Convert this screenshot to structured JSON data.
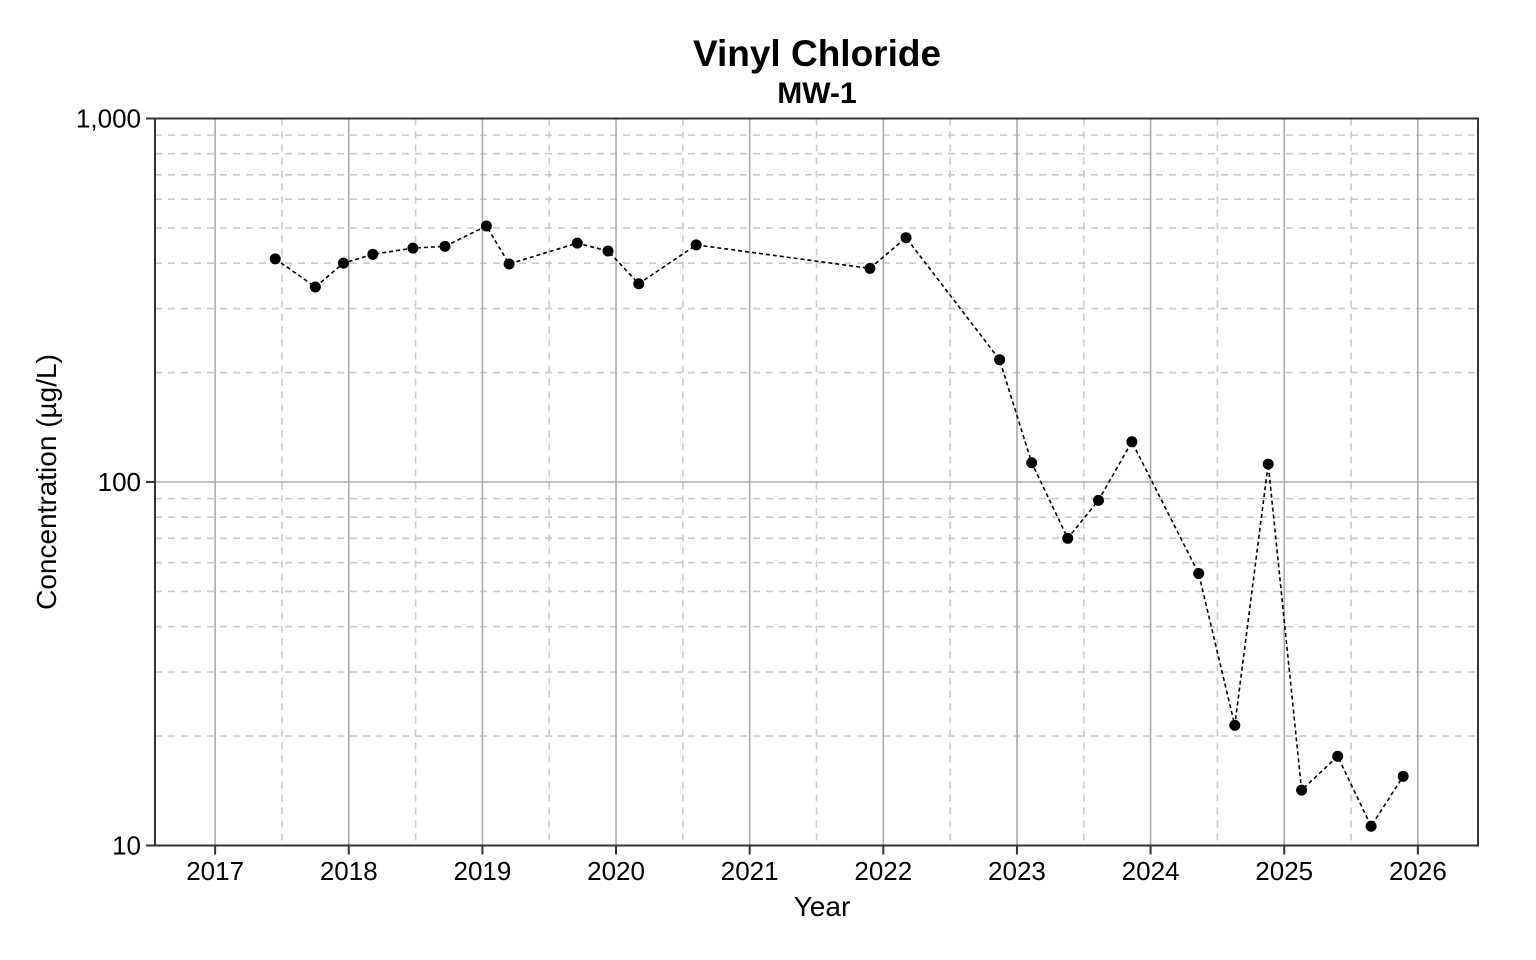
{
  "page": {
    "background": "#ffffff"
  },
  "chart_data": {
    "type": "scatter",
    "title": "Vinyl Chloride",
    "subtitle": "MW-1",
    "xlabel": "Year",
    "ylabel": "Concentration (µg/L)",
    "y_scale": "log10",
    "xlim": [
      2016.55,
      2026.45
    ],
    "ylim": [
      10,
      1000
    ],
    "x_ticks": [
      2017,
      2018,
      2019,
      2020,
      2021,
      2022,
      2023,
      2024,
      2025,
      2026
    ],
    "x_minor_ticks": [
      2017.5,
      2018.5,
      2019.5,
      2020.5,
      2021.5,
      2022.5,
      2023.5,
      2024.5,
      2025.5
    ],
    "y_ticks": [
      {
        "value": 10,
        "label": "10"
      },
      {
        "value": 100,
        "label": "100"
      },
      {
        "value": 1000,
        "label": "1,000"
      }
    ],
    "y_minor_ticks": [
      20,
      30,
      40,
      50,
      60,
      70,
      80,
      90,
      200,
      300,
      400,
      500,
      600,
      700,
      800,
      900
    ],
    "grid": {
      "major": "solid",
      "minor": "dashed"
    },
    "legend": "none",
    "series": [
      {
        "name": "MW-1",
        "marker": "filled-circle",
        "line_style": "dashed",
        "points": [
          {
            "x": 2017.45,
            "y": 411
          },
          {
            "x": 2017.75,
            "y": 344
          },
          {
            "x": 2017.96,
            "y": 400
          },
          {
            "x": 2018.18,
            "y": 423
          },
          {
            "x": 2018.48,
            "y": 440
          },
          {
            "x": 2018.72,
            "y": 445
          },
          {
            "x": 2019.03,
            "y": 506
          },
          {
            "x": 2019.2,
            "y": 398
          },
          {
            "x": 2019.71,
            "y": 454
          },
          {
            "x": 2019.94,
            "y": 432
          },
          {
            "x": 2020.17,
            "y": 351
          },
          {
            "x": 2020.6,
            "y": 449
          },
          {
            "x": 2021.9,
            "y": 387
          },
          {
            "x": 2022.17,
            "y": 470
          },
          {
            "x": 2022.87,
            "y": 217
          },
          {
            "x": 2023.11,
            "y": 113
          },
          {
            "x": 2023.38,
            "y": 70
          },
          {
            "x": 2023.61,
            "y": 89
          },
          {
            "x": 2023.86,
            "y": 129
          },
          {
            "x": 2024.36,
            "y": 56
          },
          {
            "x": 2024.63,
            "y": 21.4
          },
          {
            "x": 2024.88,
            "y": 112
          },
          {
            "x": 2025.13,
            "y": 14.2
          },
          {
            "x": 2025.4,
            "y": 17.6
          },
          {
            "x": 2025.65,
            "y": 11.3
          },
          {
            "x": 2025.89,
            "y": 15.5
          }
        ]
      }
    ],
    "colors": {
      "point": "#000000",
      "line": "#000000",
      "grid_major": "#ababab",
      "grid_minor": "#c9c9c9",
      "panel_border": "#333333",
      "tick": "#333333",
      "text": "#000000"
    }
  }
}
